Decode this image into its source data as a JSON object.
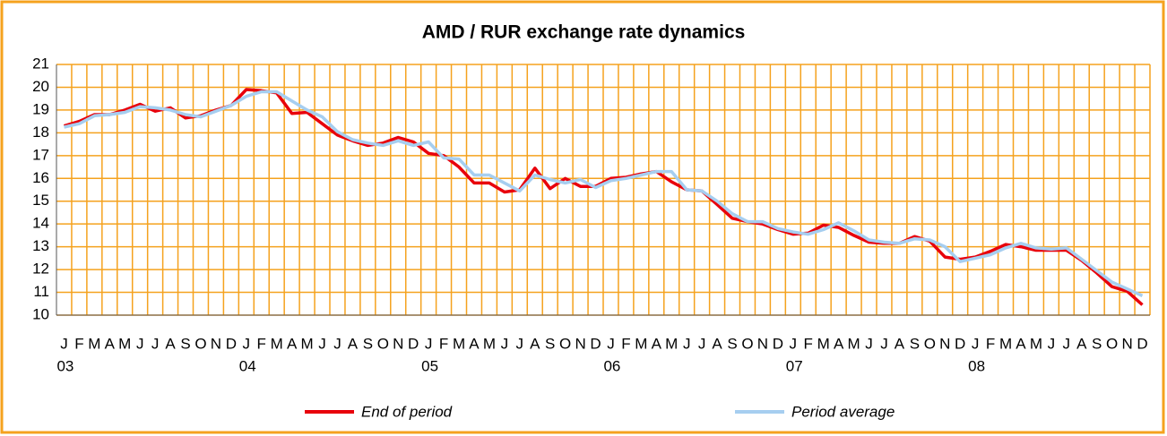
{
  "chart_data": {
    "type": "line",
    "title": "AMD / RUR exchange rate dynamics",
    "categories": [
      "J",
      "F",
      "M",
      "A",
      "M",
      "J",
      "J",
      "A",
      "S",
      "O",
      "N",
      "D",
      "J",
      "F",
      "M",
      "A",
      "M",
      "J",
      "J",
      "A",
      "S",
      "O",
      "N",
      "D",
      "J",
      "F",
      "M",
      "A",
      "M",
      "J",
      "J",
      "A",
      "S",
      "O",
      "N",
      "D",
      "J",
      "F",
      "M",
      "A",
      "M",
      "J",
      "J",
      "A",
      "S",
      "O",
      "N",
      "D",
      "J",
      "F",
      "M",
      "A",
      "M",
      "J",
      "J",
      "A",
      "S",
      "O",
      "N",
      "D",
      "J",
      "F",
      "M",
      "A",
      "M",
      "J",
      "J",
      "A",
      "S",
      "O",
      "N",
      "D"
    ],
    "years": [
      "03",
      "04",
      "05",
      "06",
      "07",
      "08"
    ],
    "series": [
      {
        "name": "End of period",
        "color": "#e8000b",
        "values": [
          18.3,
          18.5,
          18.8,
          18.8,
          19.0,
          19.25,
          18.95,
          19.1,
          18.65,
          18.75,
          19.0,
          19.2,
          19.9,
          19.85,
          19.75,
          18.85,
          18.9,
          18.4,
          17.9,
          17.65,
          17.45,
          17.55,
          17.8,
          17.6,
          17.1,
          17.0,
          16.5,
          15.8,
          15.8,
          15.4,
          15.5,
          16.45,
          15.55,
          16.0,
          15.65,
          15.65,
          16.0,
          16.05,
          16.2,
          16.3,
          15.85,
          15.5,
          15.45,
          14.85,
          14.25,
          14.1,
          14.0,
          13.75,
          13.55,
          13.6,
          13.95,
          13.85,
          13.5,
          13.2,
          13.15,
          13.15,
          13.45,
          13.25,
          12.55,
          12.45,
          12.55,
          12.8,
          13.1,
          13.0,
          12.85,
          12.85,
          12.85,
          12.4,
          11.85,
          11.25,
          11.05,
          10.45
        ]
      },
      {
        "name": "Period average",
        "color": "#a6cef0",
        "values": [
          18.25,
          18.4,
          18.75,
          18.8,
          18.9,
          19.15,
          19.1,
          19.0,
          18.8,
          18.7,
          18.95,
          19.2,
          19.6,
          19.8,
          19.8,
          19.4,
          19.0,
          18.7,
          18.05,
          17.7,
          17.55,
          17.45,
          17.65,
          17.45,
          17.6,
          16.9,
          16.85,
          16.15,
          16.15,
          15.8,
          15.45,
          16.15,
          15.95,
          15.8,
          15.95,
          15.6,
          15.9,
          16.0,
          16.15,
          16.3,
          16.3,
          15.5,
          15.45,
          15.0,
          14.45,
          14.1,
          14.1,
          13.8,
          13.65,
          13.55,
          13.75,
          14.05,
          13.7,
          13.3,
          13.2,
          13.15,
          13.35,
          13.3,
          13.0,
          12.35,
          12.5,
          12.65,
          12.95,
          13.15,
          12.95,
          12.9,
          12.95,
          12.45,
          11.95,
          11.45,
          11.15,
          10.85
        ]
      }
    ],
    "ylim": [
      10,
      21
    ],
    "yticks": [
      10,
      11,
      12,
      13,
      14,
      15,
      16,
      17,
      18,
      19,
      20,
      21
    ],
    "grid": true,
    "grid_color": "#f5a21e"
  }
}
